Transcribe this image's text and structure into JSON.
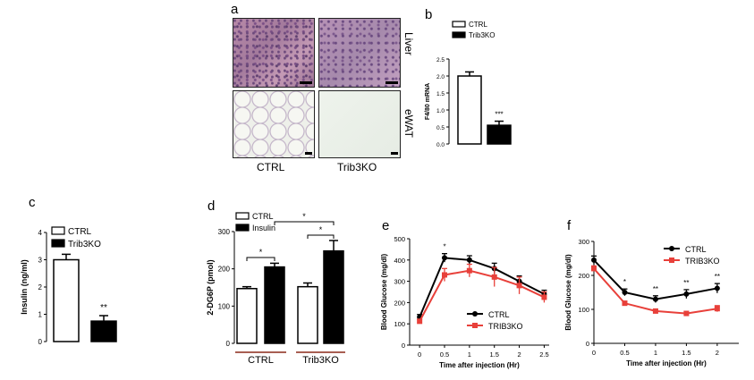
{
  "panel_a": {
    "letter": "a",
    "row_labels": [
      "Liver",
      "eWAT"
    ],
    "col_labels": [
      "CTRL",
      "Trib3KO"
    ]
  },
  "panel_b": {
    "letter": "b"
  },
  "panel_c": {
    "letter": "c"
  },
  "panel_d": {
    "letter": "d"
  },
  "panel_e": {
    "letter": "e"
  },
  "panel_f": {
    "letter": "f"
  },
  "colors": {
    "ctrl_fill": "#ffffff",
    "ko_fill": "#000000",
    "red": "#e8403a"
  },
  "chart_data": [
    {
      "id": "b",
      "type": "bar",
      "ylabel": "F4/80 mRNA",
      "ylim": [
        0,
        2.5
      ],
      "yticks": [
        "0.0",
        "0.5",
        "1.0",
        "1.5",
        "2.0",
        "2.5"
      ],
      "legend": [
        "CTRL",
        "Trib3KO"
      ],
      "series": [
        {
          "name": "CTRL",
          "value": 2.0,
          "err": 0.12
        },
        {
          "name": "Trib3KO",
          "value": 0.55,
          "err": 0.12
        }
      ],
      "annotations": [
        "***"
      ]
    },
    {
      "id": "c",
      "type": "bar",
      "ylabel": "Insulin (ng/ml)",
      "ylim": [
        0,
        4
      ],
      "yticks": [
        "0",
        "1",
        "2",
        "3",
        "4"
      ],
      "legend": [
        "CTRL",
        "Trib3KO"
      ],
      "series": [
        {
          "name": "CTRL",
          "value": 3.0,
          "err": 0.2
        },
        {
          "name": "Trib3KO",
          "value": 0.75,
          "err": 0.2
        }
      ],
      "annotations": [
        "**"
      ]
    },
    {
      "id": "d",
      "type": "bar",
      "ylabel": "2-DG6P (pmol)",
      "ylim": [
        0,
        300
      ],
      "yticks": [
        "0",
        "100",
        "200",
        "300"
      ],
      "legend": [
        "CTRL",
        "Insulin"
      ],
      "groups": [
        "CTRL",
        "Trib3KO"
      ],
      "series": [
        {
          "name": "CTRL",
          "values": [
            147,
            152
          ],
          "errs": [
            5,
            10
          ]
        },
        {
          "name": "Insulin",
          "values": [
            205,
            248
          ],
          "errs": [
            10,
            28
          ]
        }
      ],
      "annotations": [
        "*",
        "*",
        "*"
      ]
    },
    {
      "id": "e",
      "type": "line",
      "xlabel": "Time after injection (Hr)",
      "ylabel": "Blood Glucose (mg/dl)",
      "xlim": [
        -0.2,
        2.6
      ],
      "ylim": [
        0,
        500
      ],
      "xticks": [
        "0",
        "0.5",
        "1",
        "1.5",
        "2",
        "2.5"
      ],
      "yticks": [
        "0",
        "100",
        "200",
        "300",
        "400",
        "500"
      ],
      "x": [
        0,
        0.5,
        1,
        1.5,
        2,
        2.5
      ],
      "series": [
        {
          "name": "CTRL",
          "values": [
            132,
            410,
            400,
            360,
            300,
            240
          ],
          "errs": [
            12,
            20,
            20,
            25,
            25,
            18
          ]
        },
        {
          "name": "TRIB3KO",
          "values": [
            112,
            330,
            350,
            320,
            280,
            225
          ],
          "errs": [
            10,
            30,
            30,
            45,
            40,
            25
          ]
        }
      ],
      "annotations": [
        "*"
      ]
    },
    {
      "id": "f",
      "type": "line",
      "xlabel": "Time after injection (Hr)",
      "ylabel": "Blood Glucose (mg/dl)",
      "xlim": [
        -0.25,
        2.1
      ],
      "ylim": [
        0,
        300
      ],
      "xticks": [
        "0",
        "0.5",
        "1",
        "1.5",
        "2"
      ],
      "yticks": [
        "0",
        "100",
        "200",
        "300"
      ],
      "x": [
        -0.25,
        0.25,
        0.75,
        1.25,
        1.75
      ],
      "series": [
        {
          "name": "CTRL",
          "values": [
            245,
            150,
            130,
            145,
            162
          ],
          "errs": [
            12,
            10,
            10,
            13,
            14
          ]
        },
        {
          "name": "TRIB3KO",
          "values": [
            220,
            118,
            95,
            88,
            102
          ],
          "errs": [
            8,
            6,
            6,
            6,
            9
          ]
        }
      ],
      "annotations": [
        "*",
        "**",
        "**",
        "**"
      ]
    }
  ]
}
